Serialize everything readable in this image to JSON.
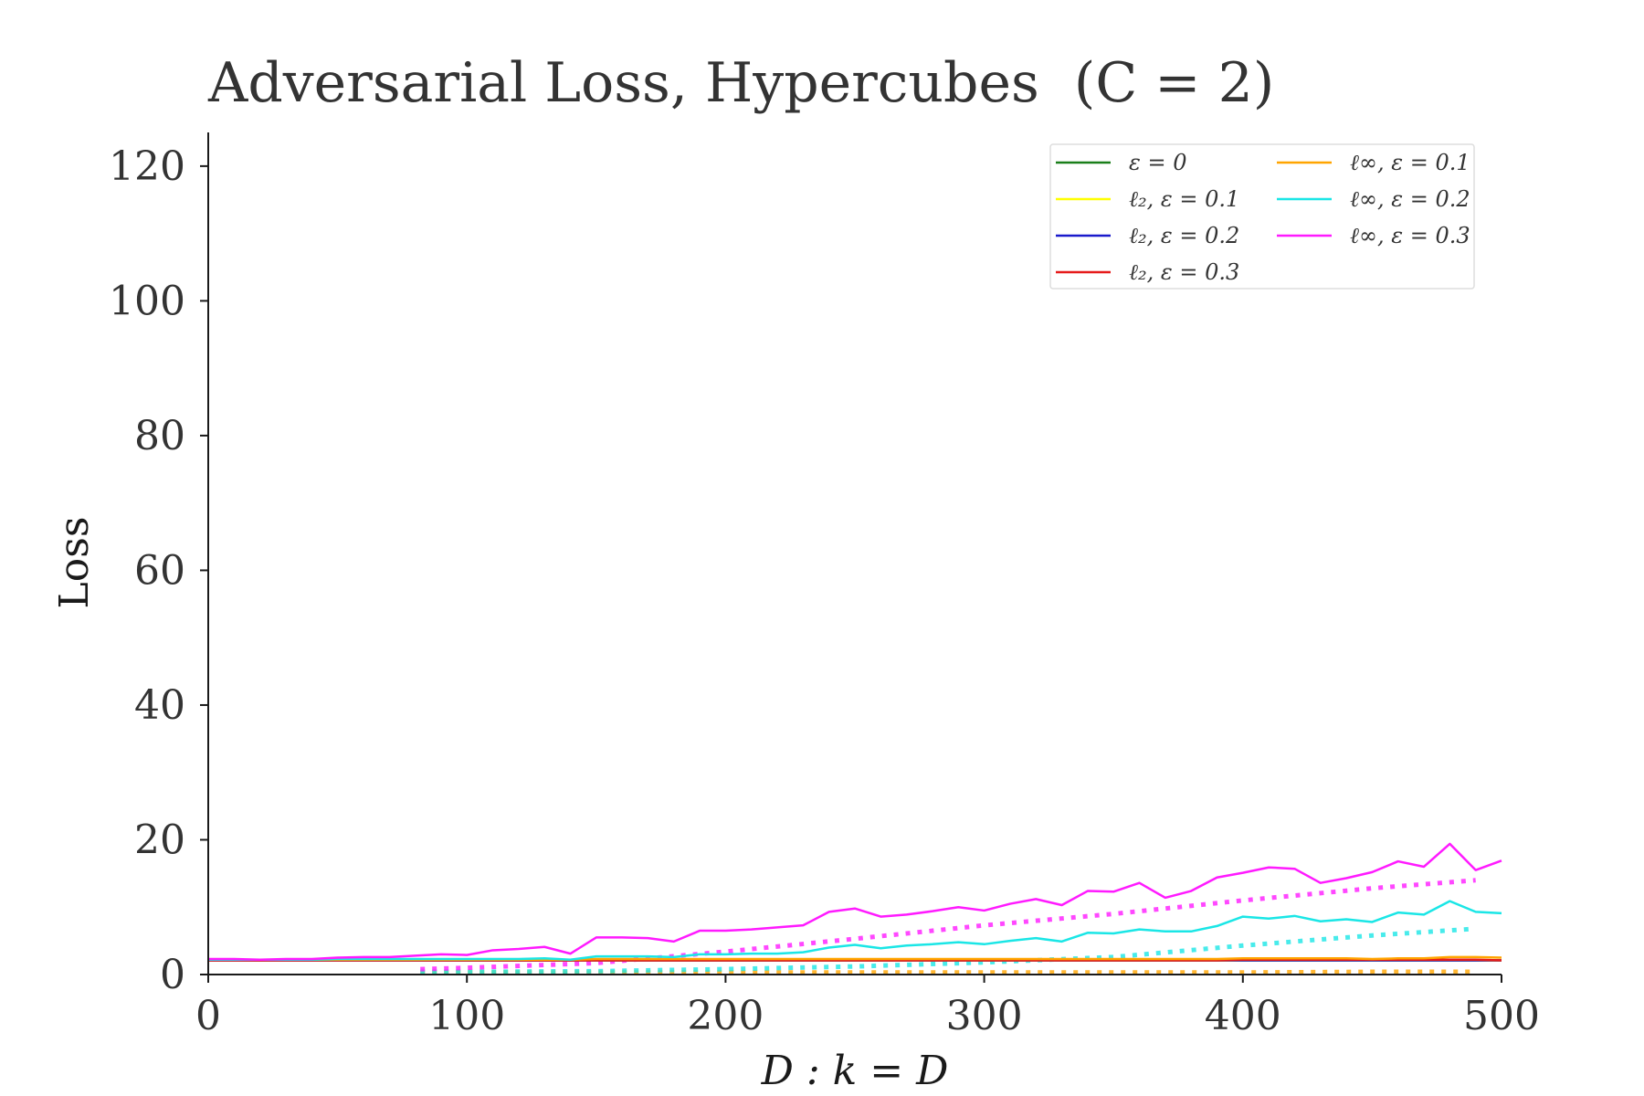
{
  "chart_data": {
    "type": "line",
    "title_prefix": "Adversarial Loss, Hypercubes",
    "title_param": "(C = 2)",
    "xlabel": "D : k = D",
    "ylabel": "Loss",
    "xlim": [
      0,
      500
    ],
    "ylim": [
      0,
      125
    ],
    "xticks": [
      0,
      100,
      200,
      300,
      400,
      500
    ],
    "yticks": [
      0,
      20,
      40,
      60,
      80,
      100,
      120
    ],
    "legend_position": "top-right",
    "grid": false,
    "x": [
      0,
      10,
      20,
      30,
      40,
      50,
      60,
      70,
      80,
      90,
      100,
      110,
      120,
      130,
      140,
      150,
      160,
      170,
      180,
      190,
      200,
      210,
      220,
      230,
      240,
      250,
      260,
      270,
      280,
      290,
      300,
      310,
      320,
      330,
      340,
      350,
      360,
      370,
      380,
      390,
      400,
      410,
      420,
      430,
      440,
      450,
      460,
      470,
      480,
      490,
      500
    ],
    "series": [
      {
        "name": "ε = 0",
        "color": "#1a7f1a",
        "style": "solid",
        "values": [
          2.1,
          2.1,
          2.1,
          2.1,
          2.1,
          2.1,
          2.1,
          2.1,
          2.1,
          2.1,
          2.1,
          2.1,
          2.1,
          2.1,
          2.1,
          2.1,
          2.1,
          2.1,
          2.1,
          2.1,
          2.1,
          2.1,
          2.1,
          2.1,
          2.1,
          2.1,
          2.1,
          2.1,
          2.1,
          2.1,
          2.1,
          2.1,
          2.1,
          2.1,
          2.1,
          2.1,
          2.1,
          2.1,
          2.1,
          2.1,
          2.1,
          2.1,
          2.1,
          2.1,
          2.1,
          2.1,
          2.1,
          2.1,
          2.1,
          2.1,
          2.1
        ]
      },
      {
        "name": "ℓ₂, ε = 0.1",
        "color": "#ffff00",
        "style": "solid",
        "values": [
          2.1,
          2.1,
          2.1,
          2.1,
          2.1,
          2.1,
          2.1,
          2.1,
          2.1,
          2.1,
          2.1,
          2.1,
          2.1,
          2.1,
          2.1,
          2.1,
          2.1,
          2.1,
          2.1,
          2.1,
          2.1,
          2.1,
          2.1,
          2.1,
          2.1,
          2.1,
          2.1,
          2.1,
          2.1,
          2.1,
          2.1,
          2.1,
          2.1,
          2.1,
          2.1,
          2.1,
          2.1,
          2.1,
          2.1,
          2.1,
          2.1,
          2.1,
          2.1,
          2.1,
          2.1,
          2.1,
          2.1,
          2.1,
          2.1,
          2.1,
          2.1
        ]
      },
      {
        "name": "ℓ₂, ε = 0.2",
        "color": "#1a1acc",
        "style": "solid",
        "values": [
          2.1,
          2.1,
          2.1,
          2.1,
          2.1,
          2.1,
          2.1,
          2.1,
          2.1,
          2.1,
          2.1,
          2.1,
          2.1,
          2.1,
          2.1,
          2.1,
          2.1,
          2.1,
          2.1,
          2.1,
          2.1,
          2.1,
          2.1,
          2.1,
          2.1,
          2.1,
          2.1,
          2.1,
          2.1,
          2.1,
          2.1,
          2.1,
          2.1,
          2.1,
          2.1,
          2.1,
          2.1,
          2.1,
          2.1,
          2.1,
          2.1,
          2.1,
          2.1,
          2.1,
          2.1,
          2.1,
          2.1,
          2.1,
          2.1,
          2.1,
          2.1
        ]
      },
      {
        "name": "ℓ₂, ε = 0.3",
        "color": "#e61a1a",
        "style": "solid",
        "values": [
          2.1,
          2.1,
          2.1,
          2.1,
          2.1,
          2.1,
          2.1,
          2.1,
          2.1,
          2.1,
          2.1,
          2.1,
          2.1,
          2.1,
          2.1,
          2.1,
          2.1,
          2.1,
          2.1,
          2.1,
          2.1,
          2.1,
          2.1,
          2.1,
          2.1,
          2.1,
          2.1,
          2.1,
          2.1,
          2.1,
          2.1,
          2.1,
          2.1,
          2.1,
          2.1,
          2.1,
          2.1,
          2.1,
          2.1,
          2.1,
          2.2,
          2.2,
          2.2,
          2.2,
          2.2,
          2.2,
          2.2,
          2.2,
          2.2,
          2.2,
          2.1
        ]
      },
      {
        "name": "ℓ∞, ε = 0.1",
        "color": "#ffa500",
        "style": "solid",
        "values": [
          2.2,
          2.2,
          2.2,
          2.2,
          2.2,
          2.2,
          2.2,
          2.2,
          2.2,
          2.2,
          2.2,
          2.2,
          2.2,
          2.2,
          2.2,
          2.3,
          2.3,
          2.3,
          2.3,
          2.3,
          2.3,
          2.3,
          2.3,
          2.3,
          2.3,
          2.3,
          2.3,
          2.3,
          2.3,
          2.3,
          2.3,
          2.3,
          2.3,
          2.3,
          2.3,
          2.3,
          2.3,
          2.3,
          2.3,
          2.3,
          2.4,
          2.4,
          2.4,
          2.4,
          2.4,
          2.3,
          2.4,
          2.4,
          2.6,
          2.6,
          2.5
        ]
      },
      {
        "name": "ℓ∞, ε = 0.2",
        "color": "#1ae6e6",
        "style": "solid",
        "values": [
          2.2,
          2.2,
          2.2,
          2.2,
          2.2,
          2.3,
          2.3,
          2.3,
          2.3,
          2.3,
          2.3,
          2.3,
          2.3,
          2.4,
          2.2,
          2.7,
          2.7,
          2.7,
          2.6,
          3.0,
          3.0,
          3.1,
          3.1,
          3.3,
          4.0,
          4.4,
          3.9,
          4.3,
          4.5,
          4.8,
          4.5,
          5.0,
          5.4,
          4.9,
          6.2,
          6.1,
          6.7,
          6.4,
          6.4,
          7.2,
          8.6,
          8.3,
          8.7,
          7.9,
          8.2,
          7.8,
          9.2,
          8.9,
          10.9,
          9.3,
          9.1
        ]
      },
      {
        "name": "ℓ∞, ε = 0.3",
        "color": "#ff1aff",
        "style": "solid",
        "values": [
          2.3,
          2.3,
          2.2,
          2.3,
          2.3,
          2.5,
          2.6,
          2.6,
          2.8,
          3.0,
          2.9,
          3.6,
          3.8,
          4.1,
          3.1,
          5.5,
          5.5,
          5.4,
          4.9,
          6.5,
          6.5,
          6.7,
          7.0,
          7.3,
          9.3,
          9.8,
          8.6,
          8.9,
          9.4,
          10.0,
          9.5,
          10.5,
          11.2,
          10.3,
          12.4,
          12.3,
          13.6,
          11.4,
          12.4,
          14.4,
          15.1,
          15.9,
          15.7,
          13.6,
          14.3,
          15.2,
          16.8,
          16.0,
          19.4,
          15.5,
          16.9
        ]
      }
    ],
    "dotted_series": [
      {
        "color": "#ffa500",
        "style": "dotted",
        "x": [
          82,
          100,
          150,
          200,
          250,
          300,
          350,
          400,
          450,
          490
        ],
        "values": [
          0.3,
          0.3,
          0.3,
          0.3,
          0.3,
          0.3,
          0.3,
          0.3,
          0.4,
          0.4
        ]
      },
      {
        "color": "#1ae6e6",
        "style": "dotted",
        "x": [
          82,
          100,
          150,
          200,
          250,
          300,
          350,
          400,
          450,
          490
        ],
        "values": [
          0.4,
          0.4,
          0.5,
          0.8,
          1.2,
          1.8,
          2.6,
          4.3,
          5.8,
          6.8
        ]
      },
      {
        "color": "#ff1aff",
        "style": "dotted",
        "x": [
          82,
          100,
          150,
          200,
          250,
          300,
          350,
          400,
          450,
          490
        ],
        "values": [
          0.8,
          1.0,
          1.7,
          3.4,
          5.3,
          7.3,
          9.0,
          11.0,
          12.8,
          14.0
        ]
      }
    ]
  }
}
